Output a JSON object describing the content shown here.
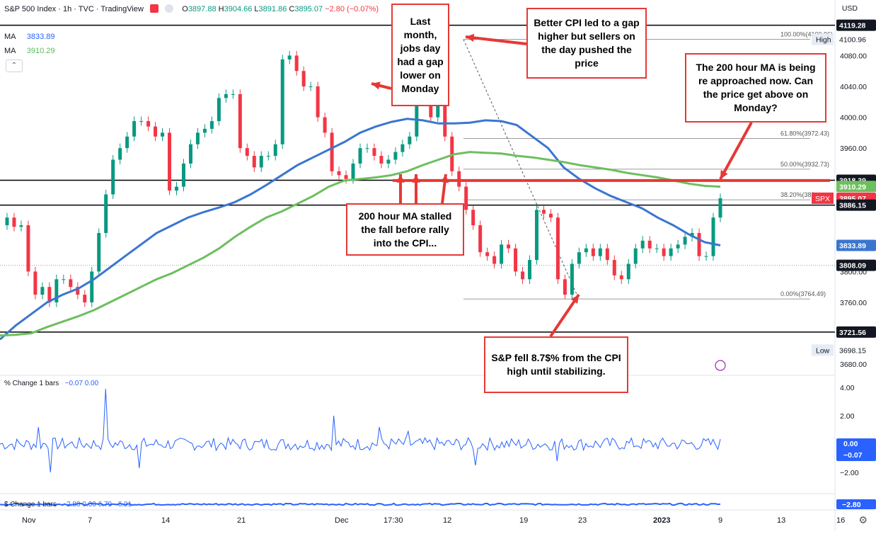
{
  "header": {
    "symbol": "S&P 500 Index · 1h · TVC · TradingView",
    "ohlc": [
      {
        "k": "O",
        "v": "3897.88"
      },
      {
        "k": "H",
        "v": "3904.66"
      },
      {
        "k": "L",
        "v": "3891.86"
      },
      {
        "k": "C",
        "v": "3895.07"
      }
    ],
    "change": "−2.80 (−0.07%)",
    "ma1_label": "MA",
    "ma1_value": "3833.89",
    "ma2_label": "MA",
    "ma2_value": "3910.29",
    "currency": "USD"
  },
  "colors": {
    "up": "#089981",
    "down": "#f23645",
    "ma_fast": "#3a76d0",
    "ma_slow": "#6dbf5e",
    "annotation": "#e53935",
    "osc": "#2962ff"
  },
  "chart_data": [
    {
      "type": "line",
      "title": "",
      "x_tick_labels": [
        "Nov",
        "7",
        "14",
        "21",
        "Dec",
        "17:30",
        "12",
        "19",
        "23",
        "2023",
        "9",
        "13",
        "16"
      ],
      "y_tick_labels": [
        "4080.00",
        "4040.00",
        "4000.00",
        "3960.00",
        "3800.00",
        "3760.00",
        "3680.00"
      ],
      "ylim": [
        3670,
        4130
      ],
      "y_ticks": [
        4080,
        4040,
        4000,
        3960,
        3800,
        3760,
        3680
      ],
      "series": [
        {
          "name": "MA",
          "label": "3833.89",
          "values": [
            3712,
            3730,
            3745,
            3760,
            3770,
            3778,
            3790,
            3805,
            3820,
            3835,
            3850,
            3860,
            3870,
            3877,
            3883,
            3890,
            3900,
            3912,
            3925,
            3938,
            3948,
            3958,
            3968,
            3980,
            3988,
            3994,
            3998,
            3996,
            3992,
            3992,
            3993,
            3996,
            3995,
            3990,
            3975,
            3960,
            3935,
            3920,
            3908,
            3898,
            3890,
            3882,
            3870,
            3860,
            3848,
            3838,
            3834
          ]
        },
        {
          "name": "MA",
          "label": "3910.29",
          "values": [
            3717,
            3718,
            3720,
            3728,
            3735,
            3742,
            3750,
            3760,
            3770,
            3780,
            3790,
            3798,
            3808,
            3818,
            3830,
            3845,
            3858,
            3870,
            3878,
            3888,
            3898,
            3910,
            3918,
            3920,
            3922,
            3925,
            3930,
            3938,
            3945,
            3952,
            3955,
            3954,
            3953,
            3950,
            3948,
            3945,
            3942,
            3938,
            3935,
            3932,
            3928,
            3925,
            3922,
            3918,
            3914,
            3911,
            3910
          ]
        }
      ],
      "price": {
        "values": [
          3860,
          3870,
          3858,
          3860,
          3800,
          3770,
          3780,
          3760,
          3790,
          3790,
          3780,
          3770,
          3760,
          3800,
          3850,
          3900,
          3945,
          3960,
          3975,
          3995,
          3995,
          3988,
          3975,
          3980,
          3905,
          3910,
          3940,
          3965,
          3980,
          3985,
          3995,
          4025,
          4030,
          4030,
          3960,
          3950,
          3935,
          3950,
          3950,
          3965,
          4075,
          4080,
          4060,
          4040,
          4040,
          4000,
          3980,
          3930,
          3925,
          3920,
          3940,
          3960,
          3960,
          3950,
          3940,
          3945,
          3955,
          3965,
          3975,
          4105,
          4050,
          4000,
          4020,
          3975,
          3930,
          3910,
          3880,
          3860,
          3825,
          3820,
          3810,
          3835,
          3830,
          3800,
          3790,
          3815,
          3880,
          3875,
          3870,
          3790,
          3770,
          3810,
          3825,
          3830,
          3820,
          3830,
          3815,
          3795,
          3790,
          3810,
          3830,
          3840,
          3830,
          3830,
          3820,
          3830,
          3835,
          3845,
          3850,
          3820,
          3820,
          3870,
          3895
        ]
      },
      "oscillator": {
        "label": "% Change 1 bars",
        "values_shown": "−0.07 0.00",
        "ticks": [
          "4.00",
          "2.00",
          "0.00",
          "−2.00"
        ],
        "last": "−0.07"
      },
      "oscillator2": {
        "label": "$ Change 1 bars",
        "values_shown": "−2.80 0.00 6.79 −6.01",
        "last": "−2.80"
      },
      "fib_levels": [
        {
          "label": "100.00%(4100.96)",
          "value": 4100.96
        },
        {
          "label": "61.80%(3972.43)",
          "value": 3972.43
        },
        {
          "label": "50.00%(3932.73)",
          "value": 3932.73
        },
        {
          "label": "38.20%(389",
          "value": 3893
        },
        {
          "label": "0.00%(3764.49)",
          "value": 3764.49
        }
      ],
      "horizontal_levels": [
        4119.28,
        3918.39,
        3886.15,
        3721.56
      ],
      "price_tags": [
        {
          "text": "4119.28",
          "value": 4119.28,
          "color": "#131722"
        },
        {
          "text": "High",
          "value": 4100.96,
          "color": "#e6ecf5"
        },
        {
          "text": "4100.96",
          "value": 4100.96,
          "color": "none"
        },
        {
          "text": "3918.39",
          "value": 3918.39,
          "color": "#131722"
        },
        {
          "text": "3910.29",
          "value": 3910.29,
          "color": "#6dbf5e"
        },
        {
          "text": "SPX",
          "value": 3895.07,
          "color": "#f23645"
        },
        {
          "text": "3895.07",
          "value": 3895.07,
          "color": "#f23645"
        },
        {
          "text": "3886.15",
          "value": 3886.15,
          "color": "#131722"
        },
        {
          "text": "3833.89",
          "value": 3833.89,
          "color": "#3a76d0"
        },
        {
          "text": "3808.09",
          "value": 3808.09,
          "color": "#131722"
        },
        {
          "text": "3721.56",
          "value": 3721.56,
          "color": "#131722"
        },
        {
          "text": "Low",
          "value": 3698.15,
          "color": "#e6ecf5"
        },
        {
          "text": "3698.15",
          "value": 3698.15,
          "color": "none"
        }
      ]
    }
  ],
  "annotations": [
    {
      "id": "jobs",
      "text": "Last month, jobs day had a gap lower on Monday"
    },
    {
      "id": "cpi",
      "text": "Better CPI led to a gap higher but sellers on the day pushed the price"
    },
    {
      "id": "ma200",
      "text": "The 200 hour MA is being re approached now. Can the price get above on Monday?"
    },
    {
      "id": "stall",
      "text": "200 hour MA stalled the fall before rally into the CPI..."
    },
    {
      "id": "fell",
      "text": "S&P fell 8.7$% from the CPI high until stabilizing."
    }
  ]
}
